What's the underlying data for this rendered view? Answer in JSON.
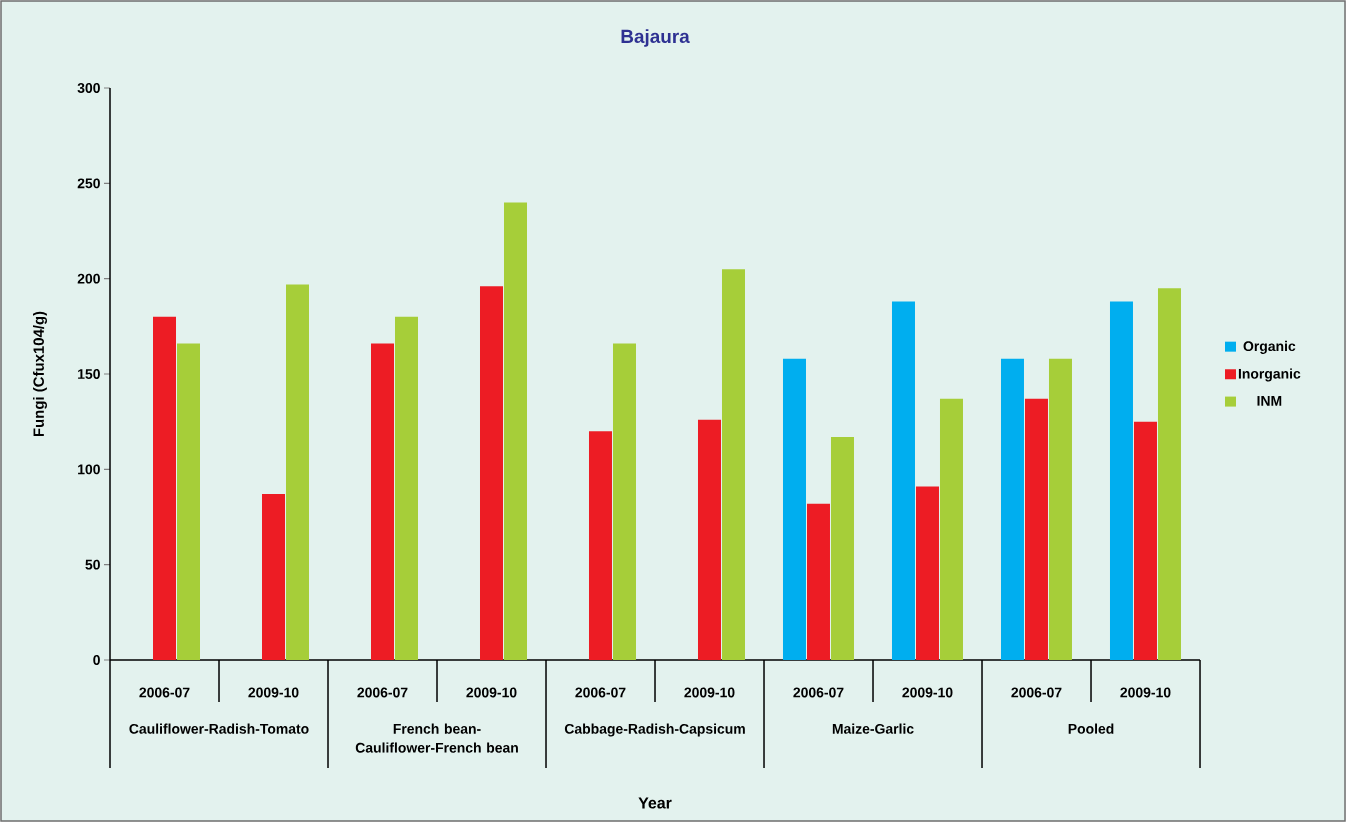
{
  "chart_data": {
    "type": "bar",
    "title": "Bajaura",
    "ylabel": "Fungi (Cfux104/g)",
    "categories": [
      "2006-07",
      "2009-10",
      "2006-07",
      "2009-10",
      "2006-07",
      "2009-10",
      "2006-07",
      "2009-10",
      "2006-07",
      "2009-10"
    ],
    "annotations": [
      "Cauliflower-Radish-Tomato",
      "French bean-Cauliflower-French bean",
      "Cabbage-Radish-Capsicum",
      "Maize-Garlic",
      "Pooled",
      "Year"
    ],
    "series": [
      {
        "name": "Organic",
        "color": "#00aeef",
        "values": [
          null,
          null,
          null,
          null,
          null,
          null,
          158,
          188,
          158,
          188
        ]
      },
      {
        "name": "Inorganic",
        "color": "#ed1c24",
        "values": [
          180,
          87,
          166,
          196,
          120,
          126,
          82,
          91,
          137,
          125
        ]
      },
      {
        "name": "INM",
        "color": "#a6ce39",
        "values": [
          166,
          197,
          180,
          240,
          166,
          205,
          117,
          137,
          158,
          195
        ]
      }
    ],
    "ylim": [
      0,
      300
    ],
    "yticks": [
      0,
      50,
      100,
      150,
      200,
      250,
      300
    ],
    "grid": false,
    "legend": "right"
  }
}
